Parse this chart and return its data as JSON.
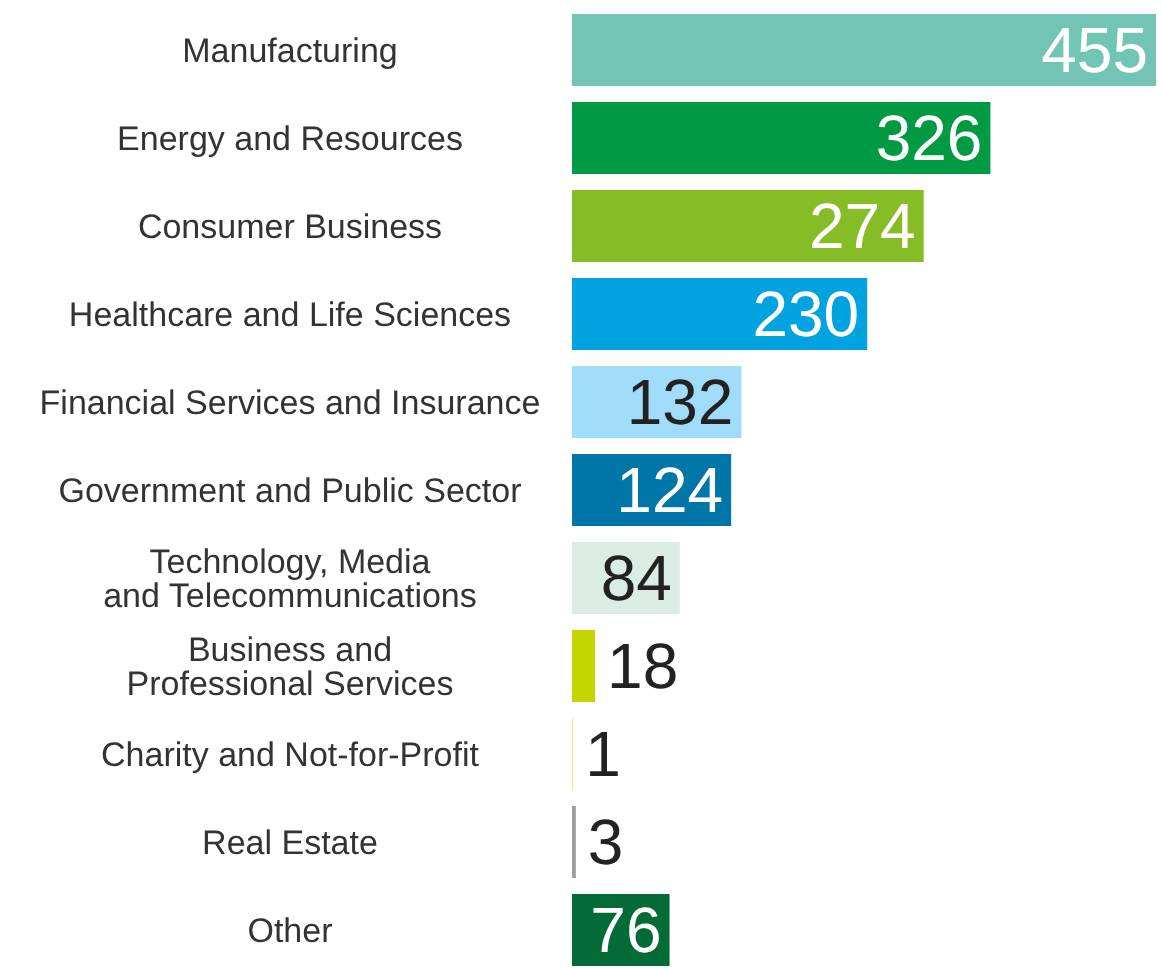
{
  "chart_data": {
    "type": "bar",
    "orientation": "horizontal",
    "data_labels": true,
    "categories": [
      "Manufacturing",
      "Energy and Resources",
      "Consumer Business",
      "Healthcare and Life Sciences",
      "Financial Services and Insurance",
      "Government and Public Sector",
      "Technology, Media\nand Telecommunications",
      "Business and\nProfessional Services",
      "Charity and Not-for-Profit",
      "Real Estate",
      "Other"
    ],
    "values": [
      455,
      326,
      274,
      230,
      132,
      124,
      84,
      18,
      1,
      3,
      76
    ],
    "colors": [
      "#72c4b4",
      "#009a44",
      "#86bc25",
      "#00a3e0",
      "#a0dcfa",
      "#0076a8",
      "#dbece5",
      "#c4d600",
      "#f0ea9a",
      "#9e9e9e",
      "#046a38"
    ]
  }
}
